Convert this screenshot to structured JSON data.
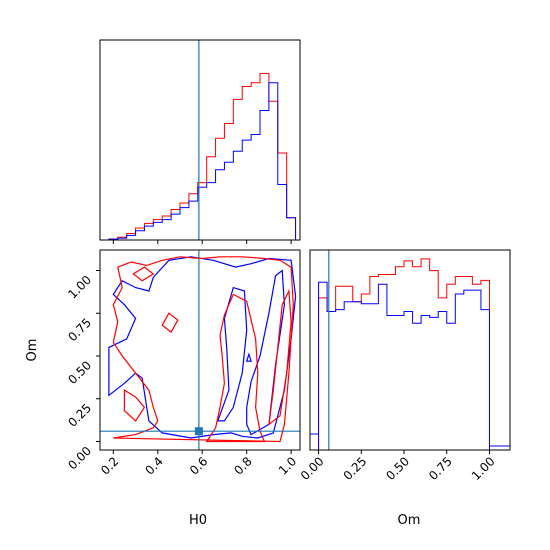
{
  "chart_data": [
    {
      "type": "histogram",
      "panel": "H0-marginal",
      "xlim": [
        0.14,
        1.04
      ],
      "truth_x": 0.585,
      "bin_edges": [
        0.18,
        0.22,
        0.26,
        0.3,
        0.34,
        0.38,
        0.42,
        0.46,
        0.5,
        0.54,
        0.58,
        0.62,
        0.66,
        0.7,
        0.74,
        0.78,
        0.82,
        0.86,
        0.9,
        0.94,
        0.98,
        1.02
      ],
      "ymax": 1.0,
      "series": [
        {
          "color": "#ff0000",
          "heights": [
            0.005,
            0.015,
            0.035,
            0.065,
            0.09,
            0.11,
            0.13,
            0.165,
            0.2,
            0.25,
            0.31,
            0.45,
            0.55,
            0.63,
            0.76,
            0.83,
            0.85,
            0.9,
            0.75,
            0.47,
            0.12
          ]
        },
        {
          "color": "#0000ff",
          "heights": [
            0.005,
            0.01,
            0.025,
            0.05,
            0.075,
            0.095,
            0.11,
            0.14,
            0.175,
            0.21,
            0.285,
            0.31,
            0.38,
            0.42,
            0.48,
            0.54,
            0.57,
            0.7,
            0.85,
            0.3,
            0.12
          ]
        }
      ],
      "xticks": [
        "0.2",
        "0.4",
        "0.6",
        "0.8",
        "1.0"
      ],
      "xtick_values": [
        0.2,
        0.4,
        0.6,
        0.8,
        1.0
      ]
    },
    {
      "type": "contour",
      "panel": "H0-Om-joint",
      "xlabel": "H0",
      "ylabel": "Om",
      "xlim": [
        0.14,
        1.04
      ],
      "ylim": [
        -0.05,
        1.12
      ],
      "truth_x": 0.585,
      "truth_y": 0.06,
      "xticks": [
        "0.2",
        "0.4",
        "0.6",
        "0.8",
        "1.0"
      ],
      "xtick_values": [
        0.2,
        0.4,
        0.6,
        0.8,
        1.0
      ],
      "yticks": [
        "0.00",
        "0.25",
        "0.50",
        "0.75",
        "1.00"
      ],
      "ytick_values": [
        0.0,
        0.25,
        0.5,
        0.75,
        1.0
      ],
      "contours": [
        {
          "color": "#0000ff",
          "points": [
            [
              0.18,
              0.27
            ],
            [
              0.25,
              0.34
            ],
            [
              0.3,
              0.4
            ],
            [
              0.33,
              0.37
            ],
            [
              0.35,
              0.2
            ],
            [
              0.36,
              0.12
            ],
            [
              0.42,
              0.05
            ],
            [
              0.55,
              0.02
            ],
            [
              0.65,
              0.04
            ],
            [
              0.73,
              0.05
            ],
            [
              0.78,
              0.03
            ],
            [
              0.85,
              0.02
            ],
            [
              0.92,
              0.05
            ],
            [
              0.97,
              0.3
            ],
            [
              1.0,
              0.6
            ],
            [
              1.02,
              0.85
            ],
            [
              1.0,
              1.06
            ],
            [
              0.9,
              1.07
            ],
            [
              0.82,
              1.04
            ],
            [
              0.75,
              1.02
            ],
            [
              0.65,
              1.06
            ],
            [
              0.55,
              1.08
            ],
            [
              0.45,
              1.06
            ],
            [
              0.38,
              0.96
            ],
            [
              0.36,
              0.88
            ],
            [
              0.3,
              0.9
            ],
            [
              0.24,
              0.94
            ],
            [
              0.2,
              0.86
            ],
            [
              0.25,
              0.8
            ],
            [
              0.3,
              0.72
            ],
            [
              0.26,
              0.6
            ],
            [
              0.18,
              0.55
            ]
          ]
        },
        {
          "color": "#0000ff",
          "points": [
            [
              0.82,
              0.04
            ],
            [
              0.9,
              0.1
            ],
            [
              0.93,
              0.45
            ],
            [
              0.97,
              0.8
            ],
            [
              0.96,
              1.0
            ],
            [
              0.93,
              0.97
            ],
            [
              0.9,
              0.75
            ],
            [
              0.86,
              0.5
            ],
            [
              0.82,
              0.35
            ],
            [
              0.8,
              0.2
            ],
            [
              0.8,
              0.1
            ]
          ]
        },
        {
          "color": "#0000ff",
          "points": [
            [
              0.67,
              0.12
            ],
            [
              0.72,
              0.3
            ],
            [
              0.71,
              0.55
            ],
            [
              0.7,
              0.72
            ],
            [
              0.74,
              0.9
            ],
            [
              0.79,
              0.88
            ],
            [
              0.8,
              0.65
            ],
            [
              0.78,
              0.4
            ],
            [
              0.74,
              0.2
            ],
            [
              0.7,
              0.12
            ]
          ]
        },
        {
          "color": "#0000ff",
          "points": [
            [
              0.8,
              0.47
            ],
            [
              0.81,
              0.51
            ],
            [
              0.82,
              0.47
            ]
          ]
        },
        {
          "color": "#ff0000",
          "points": [
            [
              0.2,
              0.02
            ],
            [
              0.3,
              0.04
            ],
            [
              0.38,
              0.08
            ],
            [
              0.4,
              0.12
            ],
            [
              0.38,
              0.2
            ],
            [
              0.36,
              0.3
            ],
            [
              0.3,
              0.4
            ],
            [
              0.24,
              0.5
            ],
            [
              0.2,
              0.58
            ],
            [
              0.22,
              0.7
            ],
            [
              0.2,
              0.8
            ],
            [
              0.24,
              0.9
            ],
            [
              0.22,
              1.02
            ],
            [
              0.28,
              1.05
            ],
            [
              0.35,
              1.03
            ],
            [
              0.42,
              1.06
            ],
            [
              0.5,
              1.08
            ],
            [
              0.6,
              1.07
            ],
            [
              0.68,
              1.08
            ],
            [
              0.78,
              1.08
            ],
            [
              0.88,
              1.07
            ],
            [
              0.95,
              1.06
            ],
            [
              1.0,
              1.02
            ],
            [
              1.01,
              0.8
            ],
            [
              0.99,
              0.4
            ],
            [
              0.97,
              0.1
            ],
            [
              0.95,
              0.0
            ]
          ]
        },
        {
          "color": "#ff0000",
          "points": [
            [
              0.25,
              0.3
            ],
            [
              0.3,
              0.26
            ],
            [
              0.34,
              0.2
            ],
            [
              0.3,
              0.12
            ],
            [
              0.25,
              0.18
            ]
          ]
        },
        {
          "color": "#ff0000",
          "points": [
            [
              0.62,
              0.0
            ],
            [
              0.66,
              0.08
            ],
            [
              0.68,
              0.2
            ],
            [
              0.7,
              0.34
            ],
            [
              0.69,
              0.5
            ],
            [
              0.68,
              0.62
            ],
            [
              0.7,
              0.74
            ],
            [
              0.74,
              0.86
            ],
            [
              0.8,
              0.82
            ],
            [
              0.84,
              0.6
            ],
            [
              0.85,
              0.4
            ],
            [
              0.84,
              0.2
            ],
            [
              0.86,
              0.06
            ],
            [
              0.88,
              0.0
            ]
          ]
        },
        {
          "color": "#ff0000",
          "points": [
            [
              0.9,
              0.1
            ],
            [
              0.92,
              0.3
            ],
            [
              0.94,
              0.55
            ],
            [
              0.96,
              0.8
            ],
            [
              0.99,
              0.88
            ],
            [
              1.0,
              0.7
            ],
            [
              0.98,
              0.4
            ],
            [
              0.95,
              0.15
            ]
          ]
        },
        {
          "color": "#ff0000",
          "points": [
            [
              0.42,
              0.68
            ],
            [
              0.45,
              0.75
            ],
            [
              0.49,
              0.71
            ],
            [
              0.46,
              0.64
            ]
          ]
        },
        {
          "color": "#ff0000",
          "points": [
            [
              0.29,
              0.98
            ],
            [
              0.34,
              1.02
            ],
            [
              0.38,
              0.98
            ],
            [
              0.33,
              0.94
            ]
          ]
        }
      ]
    },
    {
      "type": "histogram",
      "panel": "Om-marginal",
      "xlabel": "Om",
      "xlim": [
        -0.05,
        1.12
      ],
      "truth_x": 0.06,
      "bin_edges": [
        0.0,
        0.05,
        0.1,
        0.15,
        0.2,
        0.25,
        0.3,
        0.35,
        0.4,
        0.45,
        0.5,
        0.55,
        0.6,
        0.65,
        0.7,
        0.75,
        0.8,
        0.85,
        0.9,
        0.95,
        1.0
      ],
      "ymax": 1.0,
      "series": [
        {
          "color": "#ff0000",
          "heights": [
            0.78,
            0.71,
            0.84,
            0.84,
            0.76,
            0.8,
            0.89,
            0.9,
            0.9,
            0.94,
            0.97,
            0.94,
            0.98,
            0.92,
            0.78,
            0.85,
            0.89,
            0.89,
            0.85,
            0.87
          ]
        },
        {
          "color": "#0000ff",
          "heights": [
            0.86,
            0.71,
            0.72,
            0.76,
            0.76,
            0.75,
            0.75,
            0.85,
            0.69,
            0.69,
            0.71,
            0.65,
            0.69,
            0.68,
            0.71,
            0.65,
            0.8,
            0.82,
            0.82,
            0.72
          ]
        }
      ],
      "xticks": [
        "0.00",
        "0.25",
        "0.50",
        "0.75",
        "1.00"
      ],
      "xtick_values": [
        0.0,
        0.25,
        0.5,
        0.75,
        1.0
      ]
    }
  ]
}
